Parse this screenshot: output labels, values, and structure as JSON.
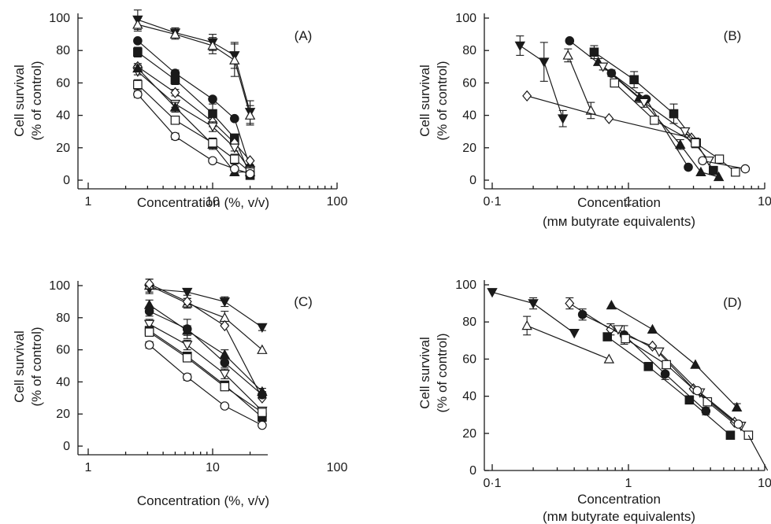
{
  "chart_data": [
    {
      "panel_label": "(A)",
      "type": "scatter",
      "xscale": "log",
      "xlim": [
        1,
        100
      ],
      "ylim": [
        0,
        100
      ],
      "xticks": [
        1,
        10,
        100
      ],
      "xtick_labels": [
        "1",
        "10",
        "100"
      ],
      "yticks": [
        0,
        20,
        40,
        60,
        80,
        100
      ],
      "ytick_labels": [
        "0",
        "20",
        "40",
        "60",
        "80",
        "100"
      ],
      "xlabel_lines": [
        "Concentration (%, v/v)"
      ],
      "ylabel_lines": [
        "Cell survival",
        "(% of control)"
      ],
      "series": [
        {
          "marker": "tri-down-filled",
          "x": [
            2.5,
            5,
            10,
            15,
            20
          ],
          "y": [
            99,
            91,
            85,
            77,
            42
          ],
          "err": [
            6,
            3,
            5,
            8,
            7
          ]
        },
        {
          "marker": "tri-up-open",
          "x": [
            2.5,
            5,
            10,
            15,
            20
          ],
          "y": [
            96,
            90,
            83,
            74,
            40
          ],
          "err": [
            4,
            3,
            5,
            10,
            6
          ]
        },
        {
          "marker": "circle-filled",
          "x": [
            2.5,
            5,
            10,
            15,
            20
          ],
          "y": [
            86,
            66,
            50,
            38,
            8
          ],
          "err": [
            0,
            2,
            0,
            0,
            0
          ]
        },
        {
          "marker": "square-filled",
          "x": [
            2.5,
            5,
            10,
            15,
            20
          ],
          "y": [
            79,
            62,
            41,
            26,
            3
          ],
          "err": [
            3,
            3,
            6,
            0,
            2
          ]
        },
        {
          "marker": "diamond-open",
          "x": [
            2.5,
            5,
            10,
            15,
            20
          ],
          "y": [
            70,
            54,
            36,
            23,
            12
          ],
          "err": [
            2,
            2,
            3,
            2,
            0
          ]
        },
        {
          "marker": "tri-down-open",
          "x": [
            2.5,
            5,
            10,
            15,
            20
          ],
          "y": [
            67,
            47,
            33,
            20,
            6
          ],
          "err": [
            2,
            2,
            3,
            2,
            0
          ]
        },
        {
          "marker": "tri-up-filled",
          "x": [
            2.5,
            5,
            10,
            15,
            20
          ],
          "y": [
            69,
            45,
            22,
            5,
            5
          ],
          "err": [
            2,
            3,
            3,
            1,
            0
          ]
        },
        {
          "marker": "square-open",
          "x": [
            2.5,
            5,
            10,
            15,
            20
          ],
          "y": [
            59,
            37,
            23,
            13,
            5
          ],
          "err": [
            3,
            2,
            3,
            3,
            0
          ]
        },
        {
          "marker": "circle-open",
          "x": [
            2.5,
            5,
            10,
            15,
            20
          ],
          "y": [
            53,
            27,
            12,
            7,
            4
          ],
          "err": [
            2,
            2,
            1,
            1,
            0
          ]
        }
      ]
    },
    {
      "panel_label": "(B)",
      "type": "scatter",
      "xscale": "log",
      "xlim": [
        0.1,
        10
      ],
      "ylim": [
        0,
        100
      ],
      "xticks": [
        0.1,
        1,
        10
      ],
      "xtick_labels": [
        "0·1",
        "1",
        "10"
      ],
      "yticks": [
        0,
        20,
        40,
        60,
        80,
        100
      ],
      "ytick_labels": [
        "0",
        "20",
        "40",
        "60",
        "80",
        "100"
      ],
      "xlabel_lines": [
        "Concentration",
        "(mм butyrate equivalents)"
      ],
      "ylabel_lines": [
        "Cell survival",
        "(% of control)"
      ],
      "series": [
        {
          "marker": "tri-down-filled",
          "x": [
            0.16,
            0.24,
            0.33
          ],
          "y": [
            83,
            73,
            38
          ],
          "err": [
            6,
            12,
            5
          ]
        },
        {
          "marker": "tri-up-open",
          "x": [
            0.36,
            0.53
          ],
          "y": [
            77,
            43
          ],
          "err": [
            4,
            5
          ]
        },
        {
          "marker": "diamond-open",
          "x": [
            0.18,
            0.72,
            2.9
          ],
          "y": [
            52,
            38,
            26
          ],
          "err": [
            0,
            0,
            0
          ]
        },
        {
          "marker": "circle-filled",
          "x": [
            0.37,
            0.75,
            1.35,
            2.75
          ],
          "y": [
            86,
            66,
            50,
            8
          ],
          "err": [
            0,
            2,
            0,
            0
          ]
        },
        {
          "marker": "square-filled",
          "x": [
            0.56,
            1.1,
            2.15,
            3.15,
            4.2
          ],
          "y": [
            79,
            62,
            41,
            23,
            6
          ],
          "err": [
            4,
            5,
            6,
            0,
            2
          ]
        },
        {
          "marker": "tri-up-filled",
          "x": [
            0.6,
            1.2,
            2.4,
            3.4,
            4.6
          ],
          "y": [
            73,
            51,
            22,
            5,
            2
          ],
          "err": [
            2,
            3,
            3,
            0,
            0
          ]
        },
        {
          "marker": "tri-down-open",
          "x": [
            0.65,
            1.3,
            2.6,
            3.9
          ],
          "y": [
            70,
            48,
            30,
            12
          ],
          "err": [
            2,
            3,
            2,
            0
          ]
        },
        {
          "marker": "square-open",
          "x": [
            0.79,
            1.55,
            3.1,
            4.65,
            6.1
          ],
          "y": [
            60,
            37,
            23,
            13,
            5
          ],
          "err": [
            2,
            2,
            3,
            2,
            0
          ]
        },
        {
          "marker": "circle-open",
          "x": [
            3.5,
            7.2
          ],
          "y": [
            12,
            7
          ],
          "err": [
            0,
            0
          ]
        }
      ]
    },
    {
      "panel_label": "(C)",
      "type": "scatter",
      "xscale": "log",
      "xlim": [
        1,
        100
      ],
      "ylim": [
        0,
        100
      ],
      "xticks": [
        1,
        10,
        100
      ],
      "xtick_labels": [
        "1",
        "10",
        "100"
      ],
      "yticks": [
        0,
        20,
        40,
        60,
        80,
        100
      ],
      "ytick_labels": [
        "0",
        "20",
        "40",
        "60",
        "80",
        "100"
      ],
      "xlabel_lines": [
        "Concentration (%, v/v)"
      ],
      "ylabel_lines": [
        "Cell survival",
        "(% of control)"
      ],
      "series": [
        {
          "marker": "tri-down-filled",
          "x": [
            3.1,
            6.25,
            12.5,
            25
          ],
          "y": [
            98,
            96,
            90,
            74
          ],
          "err": [
            3,
            2,
            3,
            2
          ]
        },
        {
          "marker": "tri-up-open",
          "x": [
            3.1,
            6.25,
            12.5,
            25
          ],
          "y": [
            100,
            89,
            80,
            60
          ],
          "err": [
            4,
            3,
            4,
            0
          ]
        },
        {
          "marker": "diamond-open",
          "x": [
            3.1,
            6.25,
            12.5,
            25
          ],
          "y": [
            101,
            90,
            75,
            30
          ],
          "err": [
            3,
            2,
            0,
            0
          ]
        },
        {
          "marker": "tri-up-filled",
          "x": [
            3.1,
            6.25,
            12.5,
            25
          ],
          "y": [
            88,
            72,
            57,
            34
          ],
          "err": [
            3,
            3,
            3,
            2
          ]
        },
        {
          "marker": "circle-filled",
          "x": [
            3.1,
            6.25,
            12.5,
            25
          ],
          "y": [
            84,
            73,
            52,
            32
          ],
          "err": [
            3,
            6,
            3,
            2
          ]
        },
        {
          "marker": "tri-down-open",
          "x": [
            3.1,
            6.25,
            12.5,
            25
          ],
          "y": [
            76,
            63,
            45,
            22
          ],
          "err": [
            3,
            3,
            3,
            2
          ]
        },
        {
          "marker": "square-filled",
          "x": [
            3.1,
            6.25,
            12.5,
            25
          ],
          "y": [
            72,
            56,
            38,
            18
          ],
          "err": [
            2,
            2,
            2,
            2
          ]
        },
        {
          "marker": "square-open",
          "x": [
            3.1,
            6.25,
            12.5,
            25
          ],
          "y": [
            71,
            55,
            37,
            21
          ],
          "err": [
            2,
            2,
            2,
            2
          ]
        },
        {
          "marker": "circle-open",
          "x": [
            3.1,
            6.25,
            12.5,
            25
          ],
          "y": [
            63,
            43,
            25,
            13
          ],
          "err": [
            2,
            2,
            1,
            1
          ]
        }
      ]
    },
    {
      "panel_label": "(D)",
      "type": "scatter",
      "xscale": "log",
      "xlim": [
        0.1,
        10
      ],
      "ylim": [
        0,
        100
      ],
      "xticks": [
        0.1,
        1,
        10
      ],
      "xtick_labels": [
        "0·1",
        "1",
        "10"
      ],
      "yticks": [
        0,
        20,
        40,
        60,
        80,
        100
      ],
      "ytick_labels": [
        "0",
        "20",
        "40",
        "60",
        "80",
        "100"
      ],
      "xlabel_lines": [
        "Concentration",
        "(mм butyrate equivalents)"
      ],
      "ylabel_lines": [
        "Cell survival",
        "(% of control)"
      ],
      "series": [
        {
          "marker": "tri-down-filled",
          "x": [
            0.1,
            0.2,
            0.4
          ],
          "y": [
            96,
            90,
            74
          ],
          "err": [
            0,
            3,
            0
          ]
        },
        {
          "marker": "tri-up-open",
          "x": [
            0.18,
            0.72
          ],
          "y": [
            78,
            60
          ],
          "err": [
            5,
            0
          ]
        },
        {
          "marker": "diamond-open",
          "x": [
            0.37,
            0.74,
            1.5,
            3.0,
            6.0
          ],
          "y": [
            90,
            76,
            67,
            44,
            26
          ],
          "err": [
            3,
            3,
            0,
            0,
            0
          ]
        },
        {
          "marker": "circle-filled",
          "x": [
            0.46,
            0.93,
            1.86,
            3.7
          ],
          "y": [
            84,
            73,
            52,
            32
          ],
          "err": [
            3,
            5,
            3,
            2
          ]
        },
        {
          "marker": "tri-up-filled",
          "x": [
            0.75,
            1.5,
            3.1,
            6.25
          ],
          "y": [
            89,
            76,
            57,
            34
          ],
          "err": [
            0,
            0,
            0,
            2
          ]
        },
        {
          "marker": "square-filled",
          "x": [
            0.7,
            1.4,
            2.8,
            5.6
          ],
          "y": [
            72,
            56,
            38,
            19
          ],
          "err": [
            0,
            0,
            0,
            0
          ]
        },
        {
          "marker": "tri-down-open",
          "x": [
            0.84,
            1.68,
            3.35,
            6.7
          ],
          "y": [
            76,
            64,
            42,
            24
          ],
          "err": [
            0,
            0,
            0,
            0
          ]
        },
        {
          "marker": "square-open",
          "x": [
            0.95,
            1.9,
            3.8,
            7.6
          ],
          "y": [
            71,
            57,
            37,
            19
          ],
          "err": [
            0,
            0,
            0,
            0
          ]
        },
        {
          "marker": "circle-open",
          "x": [
            3.2,
            6.4
          ],
          "y": [
            43,
            25
          ],
          "err": [
            0,
            0
          ]
        }
      ],
      "tail_line": {
        "x": [
          7.6,
          10.5
        ],
        "y": [
          19,
          0
        ]
      }
    }
  ]
}
